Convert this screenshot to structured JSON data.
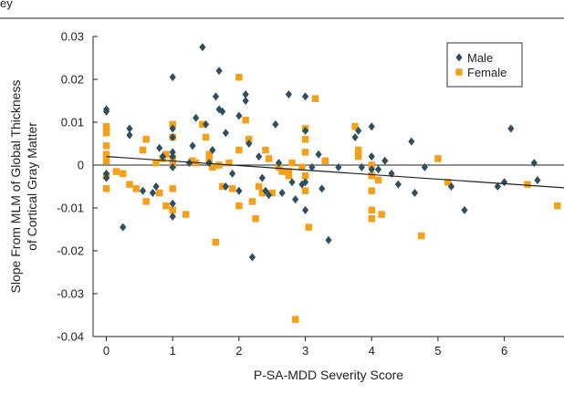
{
  "header_fragment": "ey",
  "chart_data": {
    "type": "scatter",
    "title": "",
    "xlabel": "P-SA-MDD Severity Score",
    "ylabel": [
      "Slope From MLM of Global Thickness",
      "of Cortical Gray Matter"
    ],
    "xlim": [
      -0.2,
      6.9
    ],
    "ylim": [
      -0.04,
      0.03
    ],
    "x_ticks": [
      0,
      1,
      2,
      3,
      4,
      5,
      6,
      7
    ],
    "x_tick_labels": [
      "0",
      "1",
      "2",
      "3",
      "4",
      "5",
      "6",
      "7"
    ],
    "y_ticks": [
      0.03,
      0.02,
      0.01,
      0,
      -0.01,
      -0.02,
      -0.03,
      -0.04
    ],
    "y_tick_labels": [
      "0.03",
      "0.02",
      "0.01",
      "0",
      "-0.01",
      "-0.02",
      "-0.03",
      "-0.04"
    ],
    "grid": false,
    "legend_position": "top-right",
    "colors": {
      "Male": "#2f4f5f",
      "Female": "#f5a01a"
    },
    "series": [
      {
        "name": "Male",
        "marker": "diamond",
        "points": [
          [
            0,
            0.013
          ],
          [
            0,
            0.0125
          ],
          [
            0,
            -0.002
          ],
          [
            0,
            -0.003
          ],
          [
            0.25,
            -0.0145
          ],
          [
            0.35,
            0.0085
          ],
          [
            0.35,
            0.007
          ],
          [
            0.55,
            -0.006
          ],
          [
            0.7,
            -0.0065
          ],
          [
            0.75,
            -0.005
          ],
          [
            0.8,
            0.004
          ],
          [
            0.85,
            0.002
          ],
          [
            1,
            0.0205
          ],
          [
            1,
            0.0085
          ],
          [
            1,
            0.0065
          ],
          [
            1,
            0.003
          ],
          [
            1,
            0.002
          ],
          [
            1,
            -0.0005
          ],
          [
            1,
            -0.009
          ],
          [
            1,
            -0.012
          ],
          [
            1.25,
            0.0005
          ],
          [
            1.3,
            0.0045
          ],
          [
            1.35,
            0.011
          ],
          [
            1.45,
            0.0275
          ],
          [
            1.5,
            0.0095
          ],
          [
            1.55,
            0.0005
          ],
          [
            1.6,
            0.0035
          ],
          [
            1.65,
            0.016
          ],
          [
            1.7,
            0.022
          ],
          [
            1.7,
            0.013
          ],
          [
            1.75,
            0.0125
          ],
          [
            1.8,
            0.0075
          ],
          [
            1.8,
            -0.005
          ],
          [
            1.9,
            -0.002
          ],
          [
            2,
            0.0115
          ],
          [
            2,
            -0.006
          ],
          [
            2.1,
            0.0165
          ],
          [
            2.1,
            0.015
          ],
          [
            2.15,
            0.005
          ],
          [
            2.2,
            -0.0215
          ],
          [
            2.3,
            0.002
          ],
          [
            2.35,
            -0.003
          ],
          [
            2.4,
            -0.006
          ],
          [
            2.45,
            -0.007
          ],
          [
            2.55,
            0.0095
          ],
          [
            2.6,
            0.0005
          ],
          [
            2.65,
            -0.0065
          ],
          [
            2.75,
            0.0165
          ],
          [
            2.8,
            -0.004
          ],
          [
            2.85,
            -0.008
          ],
          [
            2.95,
            -0.0045
          ],
          [
            3,
            0.016
          ],
          [
            3,
            0.008
          ],
          [
            3,
            -0.004
          ],
          [
            3,
            -0.0105
          ],
          [
            3.1,
            -0.0005
          ],
          [
            3.2,
            0.0025
          ],
          [
            3.25,
            -0.0055
          ],
          [
            3.35,
            -0.0175
          ],
          [
            3.5,
            -0.0005
          ],
          [
            3.75,
            0.0065
          ],
          [
            3.8,
            0.008
          ],
          [
            3.85,
            -0.0005
          ],
          [
            4,
            0.009
          ],
          [
            4,
            0.002
          ],
          [
            4,
            -0.001
          ],
          [
            4.1,
            -0.001
          ],
          [
            4.2,
            0.001
          ],
          [
            4.3,
            -0.002
          ],
          [
            4.4,
            -0.0045
          ],
          [
            4.6,
            0.0055
          ],
          [
            4.65,
            -0.0065
          ],
          [
            4.8,
            -0.0005
          ],
          [
            5.2,
            -0.005
          ],
          [
            5.4,
            -0.0105
          ],
          [
            5.9,
            -0.005
          ],
          [
            6,
            -0.004
          ],
          [
            6.1,
            0.0085
          ],
          [
            6.45,
            0.0005
          ],
          [
            6.5,
            -0.0035
          ]
        ]
      },
      {
        "name": "Female",
        "marker": "square",
        "points": [
          [
            0,
            0.009
          ],
          [
            0,
            0.0075
          ],
          [
            0,
            0.0045
          ],
          [
            0,
            0.0025
          ],
          [
            0,
            0.001
          ],
          [
            0,
            -0.0025
          ],
          [
            0,
            -0.0055
          ],
          [
            0.15,
            -0.0015
          ],
          [
            0.25,
            -0.002
          ],
          [
            0.35,
            -0.0045
          ],
          [
            0.45,
            -0.0055
          ],
          [
            0.55,
            0.0035
          ],
          [
            0.6,
            -0.0085
          ],
          [
            0.6,
            0.006
          ],
          [
            0.75,
            0.0005
          ],
          [
            0.8,
            -0.0065
          ],
          [
            0.85,
            0.0015
          ],
          [
            0.9,
            0.0025
          ],
          [
            0.9,
            -0.0095
          ],
          [
            1,
            0.0095
          ],
          [
            1,
            0.0065
          ],
          [
            1,
            0.0015
          ],
          [
            1,
            0
          ],
          [
            1,
            -0.0055
          ],
          [
            1,
            -0.0105
          ],
          [
            1.2,
            -0.0115
          ],
          [
            1.3,
            0.001
          ],
          [
            1.35,
            0.0005
          ],
          [
            1.45,
            0.0095
          ],
          [
            1.5,
            0.0065
          ],
          [
            1.55,
            0.0025
          ],
          [
            1.55,
            0.001
          ],
          [
            1.6,
            -0.0005
          ],
          [
            1.65,
            -0.018
          ],
          [
            1.7,
            0
          ],
          [
            1.75,
            -0.005
          ],
          [
            1.85,
            0.0005
          ],
          [
            1.9,
            -0.0055
          ],
          [
            2,
            0.0205
          ],
          [
            2,
            0.0035
          ],
          [
            2,
            -0.0095
          ],
          [
            2.1,
            0.0105
          ],
          [
            2.15,
            0.006
          ],
          [
            2.2,
            -0.0085
          ],
          [
            2.25,
            -0.0125
          ],
          [
            2.3,
            -0.005
          ],
          [
            2.35,
            -0.0065
          ],
          [
            2.4,
            0.0035
          ],
          [
            2.45,
            0.0015
          ],
          [
            2.5,
            -0.0065
          ],
          [
            2.6,
            -0.0005
          ],
          [
            2.65,
            -0.0015
          ],
          [
            2.75,
            -0.0015
          ],
          [
            2.75,
            -0.0025
          ],
          [
            2.8,
            0.0005
          ],
          [
            2.85,
            -0.036
          ],
          [
            2.95,
            -0.0005
          ],
          [
            3,
            0.0085
          ],
          [
            3,
            0.006
          ],
          [
            3,
            0.003
          ],
          [
            3,
            -0.0025
          ],
          [
            3,
            -0.006
          ],
          [
            3.05,
            -0.0145
          ],
          [
            3.15,
            0.0155
          ],
          [
            3.3,
            0.001
          ],
          [
            3.75,
            0.009
          ],
          [
            3.8,
            0.0035
          ],
          [
            3.8,
            0.002
          ],
          [
            4,
            0
          ],
          [
            4,
            -0.0025
          ],
          [
            4,
            -0.006
          ],
          [
            4,
            -0.0105
          ],
          [
            4,
            -0.0125
          ],
          [
            4.1,
            -0.0035
          ],
          [
            4.15,
            -0.0115
          ],
          [
            4.75,
            -0.0165
          ],
          [
            5,
            0.0015
          ],
          [
            5.15,
            -0.004
          ],
          [
            6.35,
            -0.0045
          ],
          [
            6.8,
            -0.0095
          ]
        ]
      }
    ],
    "trend_line": {
      "x": [
        0,
        6.9
      ],
      "y": [
        0.002,
        -0.0053
      ]
    }
  }
}
